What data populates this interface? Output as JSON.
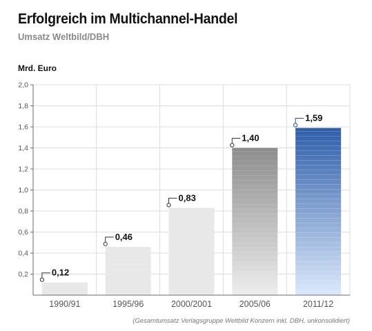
{
  "chart_data": {
    "type": "bar",
    "title": "Erfolgreich im Multichannel-Handel",
    "subtitle": "Umsatz Weltbild/DBH",
    "ylabel": "Mrd. Euro",
    "xlabel": "",
    "categories": [
      "1990/91",
      "1995/96",
      "2000/2001",
      "2005/06",
      "2011/12"
    ],
    "values": [
      0.12,
      0.46,
      0.83,
      1.4,
      1.59
    ],
    "value_labels": [
      "0,12",
      "0,46",
      "0,83",
      "1,40",
      "1,59"
    ],
    "ylim": [
      0,
      2.0
    ],
    "yticks": [
      0.2,
      0.4,
      0.6,
      0.8,
      1.0,
      1.2,
      1.4,
      1.6,
      1.8,
      2.0
    ],
    "ytick_labels": [
      "0,2",
      "0,4",
      "0,6",
      "0,8",
      "1,0",
      "1,2",
      "1,4",
      "1,6",
      "1,8",
      "2,0"
    ],
    "grid": true,
    "highlight_index": 4,
    "colors": {
      "bar_light": "#ededed",
      "bar_dark": "#8c8c8c",
      "highlight_top": "#2e5ea9",
      "highlight_bottom": "#dbe9fb",
      "highlight_text": "#1f4f93",
      "grid": "#dcdcdc",
      "axis": "#6a6a6a"
    },
    "footnote": "(Gesamtumsatz Verlagsgruppe Weltbild Konzern inkl. DBH, unkonsolidiert)"
  }
}
